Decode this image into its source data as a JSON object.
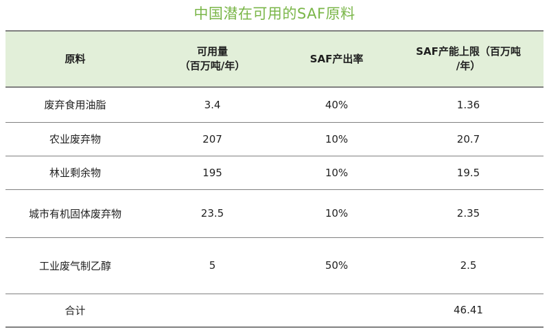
{
  "title": "中国潜在可用的SAF原料",
  "table": {
    "headers": [
      {
        "line1": "原料",
        "line2": ""
      },
      {
        "line1": "可用量",
        "line2": "（百万吨/年）"
      },
      {
        "line1": "SAF产出率",
        "line2": ""
      },
      {
        "line1": "SAF产能上限（百万吨",
        "line2": "/年）"
      }
    ],
    "rows": [
      {
        "feedstock": "废弃食用油脂",
        "available": "3.4",
        "yield": "40%",
        "capacity": "1.36"
      },
      {
        "feedstock": "农业废弃物",
        "available": "207",
        "yield": "10%",
        "capacity": "20.7"
      },
      {
        "feedstock": "林业剩余物",
        "available": "195",
        "yield": "10%",
        "capacity": "19.5"
      },
      {
        "feedstock": "城市有机固体废弃物",
        "available": "23.5",
        "yield": "10%",
        "capacity": "2.35"
      },
      {
        "feedstock": "工业废气制乙醇",
        "available": "5",
        "yield": "50%",
        "capacity": "2.5"
      },
      {
        "feedstock": "合计",
        "available": "",
        "yield": "",
        "capacity": "46.41"
      }
    ]
  },
  "colors": {
    "title": "#7ab648",
    "header_bg": "#e2efd9",
    "border": "#7f7f7f"
  }
}
